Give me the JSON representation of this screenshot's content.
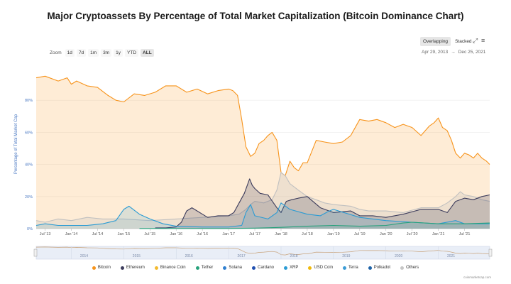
{
  "title": "Major Cryptoassets By Percentage of Total Market Capitalization (Bitcoin Dominance Chart)",
  "toolbar": {
    "modes": [
      "Overlapping",
      "Stacked"
    ],
    "active_mode": "Overlapping",
    "fullscreen_icon": "expand-icon",
    "menu_icon": "menu-icon"
  },
  "zoom": {
    "label": "Zoom",
    "buttons": [
      "1d",
      "7d",
      "1m",
      "3m",
      "1y",
      "YTD",
      "ALL"
    ],
    "active": "ALL"
  },
  "range": {
    "from": "Apr 29, 2013",
    "arrow": "→",
    "to": "Dec 25, 2021"
  },
  "credit": "coinmarketcap.com",
  "colors": {
    "bitcoin": "#f7931a",
    "ethereum": "#3c3c5c",
    "others": "#c6c6c6",
    "xrp": "#2a9bd4",
    "tether": "#26a17b"
  },
  "chart_data": {
    "type": "area",
    "ylabel": "Percentage of Total Market Cap",
    "ylim": [
      0,
      100
    ],
    "yticks": [
      "0%",
      "20%",
      "40%",
      "60%",
      "80%"
    ],
    "ytick_values": [
      0,
      20,
      40,
      60,
      80
    ],
    "xlim": [
      2013.33,
      2021.98
    ],
    "xticks": [
      {
        "t": 2013.5,
        "label": "Jul '13"
      },
      {
        "t": 2014.0,
        "label": "Jan '14"
      },
      {
        "t": 2014.5,
        "label": "Jul '14"
      },
      {
        "t": 2015.0,
        "label": "Jan '15"
      },
      {
        "t": 2015.5,
        "label": "Jul '15"
      },
      {
        "t": 2016.0,
        "label": "Jan '16"
      },
      {
        "t": 2016.5,
        "label": "Jul '16"
      },
      {
        "t": 2017.0,
        "label": "Jan '17"
      },
      {
        "t": 2017.5,
        "label": "Jul '17"
      },
      {
        "t": 2018.0,
        "label": "Jan '18"
      },
      {
        "t": 2018.5,
        "label": "Jul '18"
      },
      {
        "t": 2019.0,
        "label": "Jan '19"
      },
      {
        "t": 2019.5,
        "label": "Jul '19"
      },
      {
        "t": 2020.0,
        "label": "Jan '20"
      },
      {
        "t": 2020.5,
        "label": "Jul '20"
      },
      {
        "t": 2021.0,
        "label": "Jan '21"
      },
      {
        "t": 2021.5,
        "label": "Jul '21"
      }
    ],
    "navigator_labels": [
      {
        "t": 2014,
        "label": "2014"
      },
      {
        "t": 2015,
        "label": "2015"
      },
      {
        "t": 2016,
        "label": "2016"
      },
      {
        "t": 2017,
        "label": "2017"
      },
      {
        "t": 2018,
        "label": "2018"
      },
      {
        "t": 2019,
        "label": "2019"
      },
      {
        "t": 2020,
        "label": "2020"
      },
      {
        "t": 2021,
        "label": "2021"
      }
    ],
    "legend": [
      {
        "name": "Bitcoin",
        "color": "#f7931a"
      },
      {
        "name": "Ethereum",
        "color": "#3c3c5c"
      },
      {
        "name": "Binance Coin",
        "color": "#f3ba2f"
      },
      {
        "name": "Tether",
        "color": "#26a17b"
      },
      {
        "name": "Solana",
        "color": "#2e7fd0"
      },
      {
        "name": "Cardano",
        "color": "#1f4fb0"
      },
      {
        "name": "XRP",
        "color": "#2a9bd4"
      },
      {
        "name": "USD Coin",
        "color": "#f0b90b"
      },
      {
        "name": "Terra",
        "color": "#3b9cd6"
      },
      {
        "name": "Polkadot",
        "color": "#1e63a8"
      },
      {
        "name": "Others",
        "color": "#c6c6c6"
      }
    ],
    "series": [
      {
        "name": "Bitcoin",
        "color": "#f7931a",
        "fill": "rgba(247,147,26,0.18)",
        "t": [
          2013.33,
          2013.5,
          2013.75,
          2013.92,
          2014.0,
          2014.1,
          2014.3,
          2014.5,
          2014.7,
          2014.85,
          2015.0,
          2015.2,
          2015.4,
          2015.6,
          2015.8,
          2016.0,
          2016.2,
          2016.4,
          2016.6,
          2016.8,
          2017.0,
          2017.08,
          2017.17,
          2017.25,
          2017.33,
          2017.42,
          2017.5,
          2017.58,
          2017.67,
          2017.75,
          2017.83,
          2017.92,
          2018.0,
          2018.08,
          2018.17,
          2018.25,
          2018.33,
          2018.42,
          2018.5,
          2018.67,
          2018.83,
          2019.0,
          2019.17,
          2019.33,
          2019.5,
          2019.67,
          2019.83,
          2020.0,
          2020.17,
          2020.33,
          2020.5,
          2020.67,
          2020.83,
          2020.92,
          2021.0,
          2021.08,
          2021.17,
          2021.25,
          2021.33,
          2021.42,
          2021.5,
          2021.58,
          2021.67,
          2021.75,
          2021.83,
          2021.92,
          2021.98
        ],
        "values": [
          94,
          95,
          92,
          94,
          90,
          92,
          89,
          88,
          83,
          80,
          79,
          84,
          83,
          85,
          89,
          89,
          85,
          87,
          84,
          86,
          87,
          86,
          83,
          68,
          51,
          45,
          47,
          53,
          55,
          58,
          60,
          55,
          35,
          33,
          42,
          38,
          36,
          41,
          41,
          55,
          54,
          53,
          54,
          58,
          68,
          67,
          68,
          66,
          63,
          65,
          63,
          58,
          64,
          66,
          69,
          63,
          61,
          55,
          47,
          44,
          47,
          46,
          44,
          47,
          44,
          42,
          40
        ]
      },
      {
        "name": "Others",
        "color": "#c0c0c0",
        "fill": "rgba(180,180,180,0.22)",
        "t": [
          2013.33,
          2013.5,
          2013.75,
          2014.0,
          2014.3,
          2014.6,
          2015.0,
          2015.5,
          2016.0,
          2016.5,
          2017.0,
          2017.2,
          2017.33,
          2017.42,
          2017.5,
          2017.67,
          2017.83,
          2017.92,
          2018.0,
          2018.08,
          2018.17,
          2018.33,
          2018.5,
          2018.67,
          2018.83,
          2019.0,
          2019.33,
          2019.5,
          2019.67,
          2020.0,
          2020.33,
          2020.67,
          2021.0,
          2021.17,
          2021.33,
          2021.42,
          2021.5,
          2021.67,
          2021.83,
          2021.98
        ],
        "values": [
          5,
          4,
          6,
          5,
          7,
          6,
          6,
          5,
          6,
          7,
          8,
          9,
          12,
          15,
          17,
          16,
          18,
          24,
          35,
          33,
          28,
          24,
          20,
          18,
          16,
          15,
          14,
          12,
          11,
          11,
          10,
          13,
          13,
          16,
          20,
          23,
          21,
          20,
          18,
          17
        ]
      },
      {
        "name": "Ethereum",
        "color": "#3c3c5c",
        "fill": "rgba(60,60,92,0.22)",
        "t": [
          2015.6,
          2015.8,
          2016.0,
          2016.1,
          2016.2,
          2016.3,
          2016.4,
          2016.5,
          2016.6,
          2016.8,
          2017.0,
          2017.1,
          2017.2,
          2017.3,
          2017.4,
          2017.45,
          2017.5,
          2017.6,
          2017.75,
          2017.92,
          2018.0,
          2018.1,
          2018.2,
          2018.33,
          2018.5,
          2018.75,
          2019.0,
          2019.33,
          2019.5,
          2019.75,
          2020.0,
          2020.33,
          2020.67,
          2021.0,
          2021.17,
          2021.33,
          2021.5,
          2021.67,
          2021.83,
          2021.98
        ],
        "values": [
          0.5,
          0.5,
          1,
          4,
          11,
          13,
          11,
          9,
          7,
          8,
          8,
          10,
          16,
          22,
          31,
          27,
          25,
          22,
          21,
          13,
          10,
          17,
          18,
          19,
          20,
          13,
          10,
          11,
          8,
          8,
          7,
          9,
          12,
          12,
          10,
          17,
          19,
          18,
          20,
          21
        ]
      },
      {
        "name": "XRP",
        "color": "#2a9bd4",
        "fill": "rgba(42,155,212,0.16)",
        "t": [
          2013.33,
          2013.5,
          2013.75,
          2014.0,
          2014.3,
          2014.6,
          2014.85,
          2015.0,
          2015.1,
          2015.3,
          2015.5,
          2015.75,
          2016.0,
          2016.5,
          2017.0,
          2017.25,
          2017.33,
          2017.42,
          2017.5,
          2017.75,
          2017.92,
          2018.0,
          2018.17,
          2018.5,
          2018.75,
          2018.92,
          2019.0,
          2019.5,
          2020.0,
          2020.5,
          2021.0,
          2021.33,
          2021.5,
          2021.98
        ],
        "values": [
          2,
          3,
          2,
          2,
          2,
          3,
          5,
          12,
          14,
          9,
          6,
          3,
          1.5,
          1,
          1,
          2,
          10,
          15,
          8,
          6,
          10,
          16,
          12,
          9,
          8,
          11,
          12,
          7,
          5,
          4,
          3,
          5,
          3,
          3
        ]
      },
      {
        "name": "Tether",
        "color": "#26a17b",
        "fill": "rgba(38,161,123,0.10)",
        "t": [
          2015.3,
          2016.0,
          2017.0,
          2017.5,
          2018.0,
          2018.5,
          2019.0,
          2019.5,
          2020.0,
          2020.33,
          2020.5,
          2021.0,
          2021.5,
          2021.98
        ],
        "values": [
          0.1,
          0.1,
          0.1,
          0.3,
          0.8,
          1.5,
          2,
          1.5,
          2,
          3.5,
          4,
          3,
          3,
          3.5
        ]
      }
    ]
  }
}
